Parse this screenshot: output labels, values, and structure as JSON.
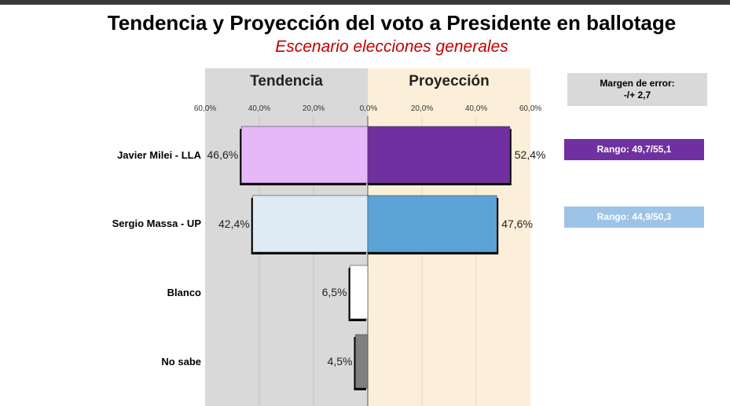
{
  "title": "Tendencia y Proyección del voto a Presidente en ballotage",
  "subtitle": "Escenario elecciones generales",
  "panels": {
    "left": "Tendencia",
    "right": "Proyección"
  },
  "margin_error": {
    "line1": "Margen de error:",
    "line2": "-/+  2,7"
  },
  "ranges": [
    {
      "label": "Rango: 49,7/55,1",
      "color": "#7030a0"
    },
    {
      "label": "Rango: 44,9/50,3",
      "color": "#9dc3e6"
    }
  ],
  "chart_data": {
    "type": "bar",
    "categories": [
      "Javier Milei - LLA",
      "Sergio Massa - UP",
      "Blanco",
      "No sabe"
    ],
    "series": [
      {
        "values": [
          46.6,
          42.4,
          6.5,
          4.5
        ],
        "value_labels": [
          "46,6%",
          "42,4%",
          "6,5%",
          "4,5%"
        ],
        "colors": [
          "#e6b8f7",
          "#deebf5",
          "#ffffff",
          "#808080"
        ]
      },
      {
        "values": [
          52.4,
          47.6,
          null,
          null
        ],
        "value_labels": [
          "52,4%",
          "47,6%",
          "",
          ""
        ],
        "colors": [
          "#7030a0",
          "#5ba3d4",
          null,
          null
        ]
      }
    ],
    "left_ticks": [
      "60,0%",
      "40,0%",
      "20,0%",
      "0,0%"
    ],
    "right_ticks": [
      "20,0%",
      "40,0%",
      "60,0%"
    ],
    "xlim": [
      0,
      60
    ]
  }
}
